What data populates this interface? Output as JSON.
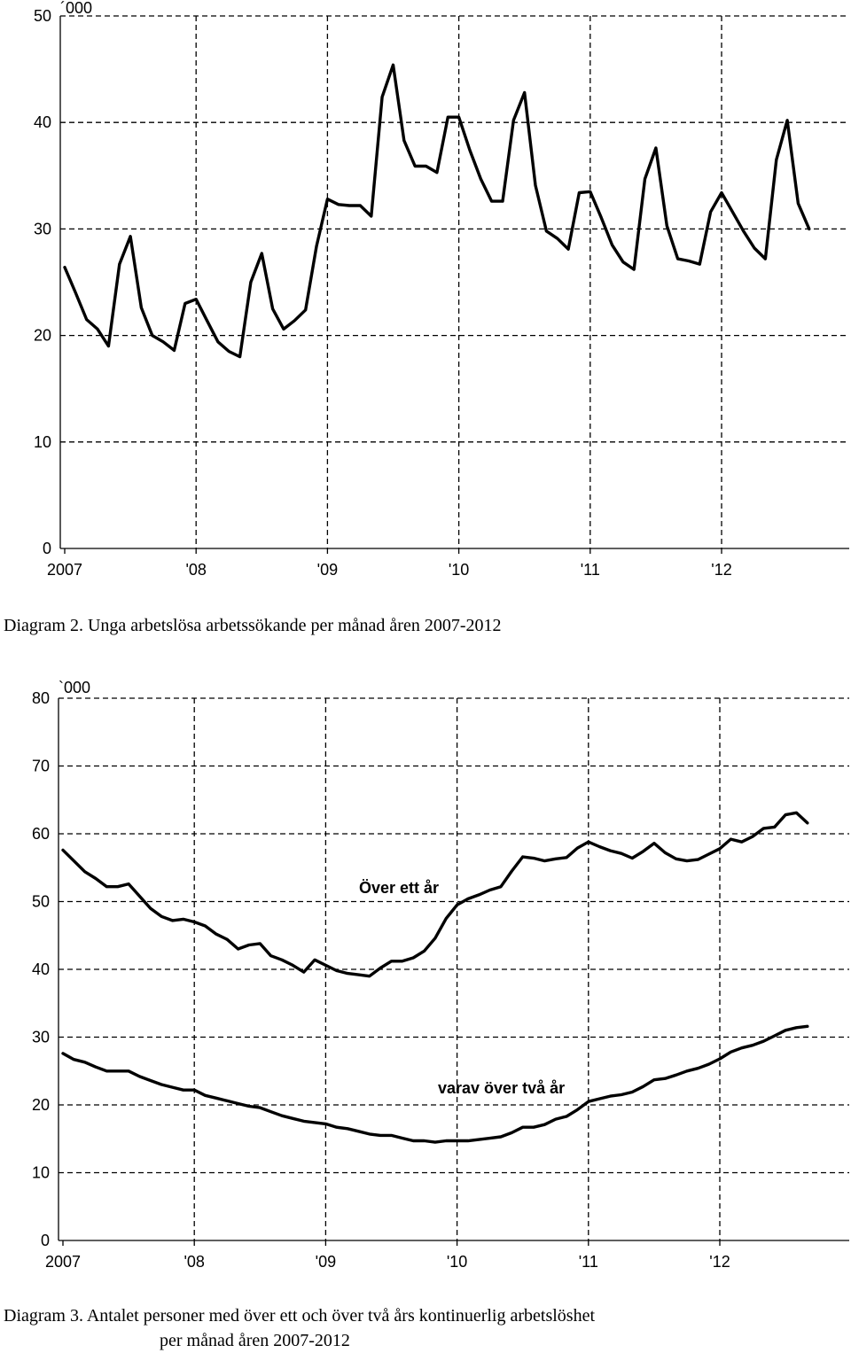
{
  "chart_data": [
    {
      "type": "line",
      "unit_label": "´000",
      "caption": "Diagram 2.  Unga arbetslösa arbetssökande per månad åren 2007-2012",
      "yticks": [
        0,
        10,
        20,
        30,
        40,
        50
      ],
      "ylim": [
        0,
        50
      ],
      "xticks": [
        "2007",
        "'08",
        "'09",
        "'10",
        "'11",
        "'12"
      ],
      "series": [
        {
          "values": [
            26.4,
            24.0,
            21.5,
            20.6,
            19.0,
            26.7,
            29.3,
            22.6,
            20.0,
            19.4,
            18.6,
            23.0,
            23.4,
            21.4,
            19.4,
            18.5,
            18.0,
            25.0,
            27.7,
            22.5,
            20.6,
            21.4,
            22.4,
            28.4,
            32.8,
            32.3,
            32.2,
            32.2,
            31.2,
            42.4,
            45.4,
            38.3,
            35.9,
            35.9,
            35.3,
            40.5,
            40.5,
            37.4,
            34.7,
            32.6,
            32.6,
            40.2,
            42.8,
            34.1,
            29.8,
            29.1,
            28.1,
            33.4,
            33.5,
            31.1,
            28.5,
            26.9,
            26.2,
            34.7,
            37.6,
            30.3,
            27.2,
            27.0,
            26.7,
            31.6,
            33.4,
            31.6,
            29.8,
            28.2,
            27.2,
            36.5,
            40.2,
            32.4,
            30.0
          ]
        }
      ]
    },
    {
      "type": "line",
      "unit_label": "`000",
      "caption_line1": "Diagram 3.  Antalet personer med över ett och över två års kontinuerlig arbetslöshet",
      "caption_line2": "per månad åren 2007-2012",
      "yticks": [
        0,
        10,
        20,
        30,
        40,
        50,
        60,
        70,
        80
      ],
      "ylim": [
        0,
        80
      ],
      "xticks": [
        "2007",
        "'08",
        "'09",
        "'10",
        "'11",
        "'12"
      ],
      "series": [
        {
          "name": "Över ett år",
          "values": [
            57.6,
            56.0,
            54.4,
            53.4,
            52.2,
            52.2,
            52.6,
            50.8,
            49.0,
            47.8,
            47.2,
            47.4,
            47.0,
            46.4,
            45.2,
            44.4,
            43.0,
            43.6,
            43.8,
            42.0,
            41.4,
            40.6,
            39.6,
            41.4,
            40.6,
            39.8,
            39.4,
            39.2,
            39.0,
            40.2,
            41.2,
            41.2,
            41.7,
            42.7,
            44.6,
            47.5,
            49.5,
            50.4,
            51.0,
            51.7,
            52.2,
            54.5,
            56.6,
            56.4,
            56.0,
            56.3,
            56.5,
            57.9,
            58.8,
            58.1,
            57.5,
            57.1,
            56.4,
            57.4,
            58.6,
            57.2,
            56.3,
            56.0,
            56.2,
            57.0,
            57.8,
            59.2,
            58.8,
            59.6,
            60.8,
            61.0,
            62.8,
            63.1,
            61.6
          ]
        },
        {
          "name": "varav över två år",
          "values": [
            27.6,
            26.7,
            26.3,
            25.6,
            25.0,
            25.0,
            25.0,
            24.2,
            23.6,
            23.0,
            22.6,
            22.2,
            22.2,
            21.4,
            21.0,
            20.6,
            20.2,
            19.8,
            19.6,
            19.0,
            18.4,
            18.0,
            17.6,
            17.4,
            17.2,
            16.7,
            16.5,
            16.1,
            15.7,
            15.5,
            15.5,
            15.1,
            14.7,
            14.7,
            14.5,
            14.7,
            14.7,
            14.7,
            14.9,
            15.1,
            15.3,
            15.9,
            16.7,
            16.7,
            17.1,
            17.9,
            18.3,
            19.3,
            20.5,
            20.9,
            21.3,
            21.5,
            21.9,
            22.7,
            23.7,
            23.9,
            24.4,
            25.0,
            25.4,
            26.0,
            26.8,
            27.8,
            28.4,
            28.8,
            29.4,
            30.2,
            31.0,
            31.4,
            31.6
          ]
        }
      ]
    }
  ]
}
